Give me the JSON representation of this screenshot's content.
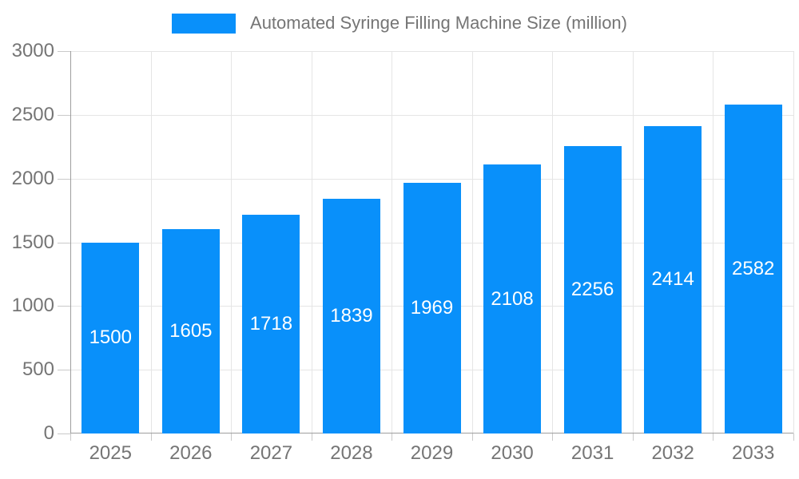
{
  "chart_data": {
    "type": "bar",
    "title": "Automated Syringe Filling Machine Size (million)",
    "legend": {
      "position": "top",
      "label": "Automated Syringe Filling Machine Size (million)"
    },
    "categories": [
      "2025",
      "2026",
      "2027",
      "2028",
      "2029",
      "2030",
      "2031",
      "2032",
      "2033"
    ],
    "values": [
      1500,
      1605,
      1718,
      1839,
      1969,
      2108,
      2256,
      2414,
      2582
    ],
    "xlabel": "",
    "ylabel": "",
    "ylim": [
      0,
      3000
    ],
    "yticks": [
      0,
      500,
      1000,
      1500,
      2000,
      2500,
      3000
    ],
    "grid": true,
    "value_labels": "centered-white-inside-bars",
    "colors": {
      "bar": "#0990fa",
      "value_label": "#ffffff",
      "axis_text": "#757575",
      "axis_line": "#9e9e9e",
      "tick": "#c9c9c9",
      "gridline": "#e5e5e5",
      "background": "#ffffff"
    }
  }
}
